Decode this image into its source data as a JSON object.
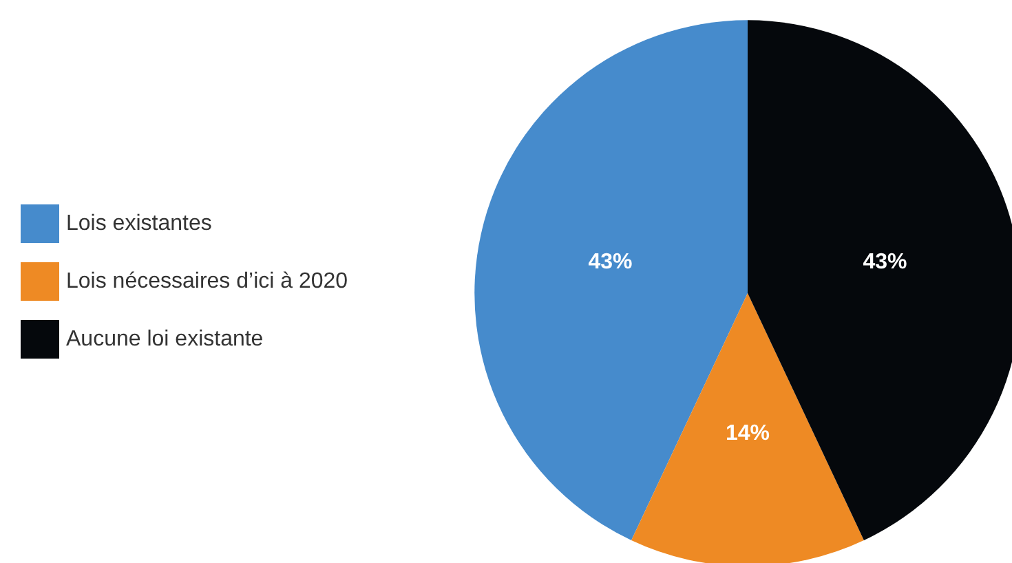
{
  "chart_data": {
    "type": "pie",
    "categories": [
      "Lois existantes",
      "Lois nécessaires d’ici à 2020",
      "Aucune loi existante"
    ],
    "values": [
      43,
      14,
      43
    ],
    "colors": [
      "#468bcc",
      "#ee8a24",
      "#05080c"
    ],
    "value_labels": [
      "43%",
      "14%",
      "43%"
    ],
    "legend": "left"
  }
}
